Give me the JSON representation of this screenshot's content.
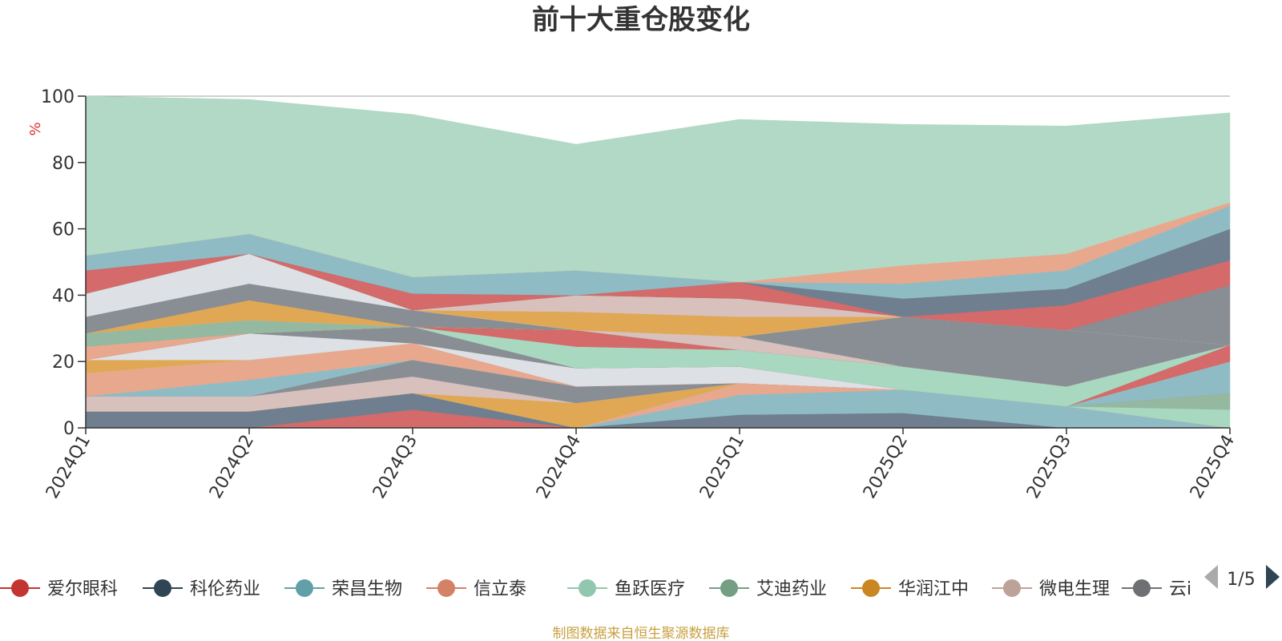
{
  "chart_data": {
    "type": "area",
    "stacked": true,
    "title": "前十大重仓股变化",
    "ylabel": "%",
    "ylim": [
      0,
      100
    ],
    "yticks": [
      0,
      20,
      40,
      60,
      80,
      100
    ],
    "grid": true,
    "categories": [
      "2024Q1",
      "2024Q2",
      "2024Q3",
      "2024Q4",
      "2025Q1",
      "2025Q2",
      "2025Q3",
      "2025Q4"
    ],
    "series": [
      {
        "name": "爱尔眼科",
        "color": "#d46a6a",
        "values": [
          0,
          0,
          5.5,
          0,
          0,
          0,
          0,
          0
        ]
      },
      {
        "name": "科伦药业",
        "color": "#6f7f8f",
        "values": [
          5,
          5,
          5,
          0,
          4,
          4.5,
          0,
          0
        ]
      },
      {
        "name": "荣昌生物",
        "color": "#8fbcc4",
        "values": [
          0,
          0,
          0,
          0,
          6,
          7,
          6.5,
          0
        ]
      },
      {
        "name": "信立泰",
        "color": "#e8a88e",
        "values": [
          0,
          0,
          0,
          0,
          3.5,
          0,
          0,
          0
        ]
      },
      {
        "name": "鱼跃医疗",
        "color": "#a8d8c0",
        "values": [
          0,
          0,
          0,
          0,
          0,
          0,
          0,
          5.5
        ]
      },
      {
        "name": "艾迪药业",
        "color": "#94b8a0",
        "values": [
          0,
          0,
          0,
          0,
          0,
          0,
          0,
          5
        ]
      },
      {
        "name": "华润江中",
        "color": "#e0a855",
        "values": [
          0,
          0,
          0,
          7.5,
          0,
          0,
          0,
          0
        ]
      },
      {
        "name": "微电生理",
        "color": "#d8c0bc",
        "values": [
          4.5,
          4.5,
          5,
          0,
          0,
          0,
          0,
          0
        ]
      },
      {
        "name": "云i",
        "color": "#888e94",
        "values": [
          0,
          0,
          5,
          5,
          0,
          0,
          0,
          0
        ]
      },
      {
        "name": "",
        "color": "#8fbcc4",
        "values": [
          0,
          5,
          0,
          0,
          0,
          0,
          0,
          9.5
        ]
      },
      {
        "name": "",
        "color": "#e8a88e",
        "values": [
          7,
          6,
          5,
          0,
          0,
          0,
          0,
          0
        ]
      },
      {
        "name": "",
        "color": "#d46a6a",
        "values": [
          0,
          0,
          0,
          0,
          0,
          0,
          0,
          5
        ]
      },
      {
        "name": "",
        "color": "#dde0e4",
        "values": [
          0,
          0,
          0,
          5.5,
          5,
          0,
          0,
          0
        ]
      },
      {
        "name": "",
        "color": "#e0a855",
        "values": [
          4,
          0,
          0,
          0,
          0,
          0,
          0,
          0
        ]
      },
      {
        "name": "",
        "color": "#dde0e4",
        "values": [
          0,
          8,
          0,
          0,
          0,
          0,
          0,
          0
        ]
      },
      {
        "name": "",
        "color": "#888e94",
        "values": [
          0,
          0,
          5,
          0,
          0,
          0,
          0,
          0
        ]
      },
      {
        "name": "",
        "color": "#a8d8c0",
        "values": [
          0,
          0,
          0,
          6.5,
          5,
          7,
          6,
          0
        ]
      },
      {
        "name": "",
        "color": "#d8c0bc",
        "values": [
          0,
          0,
          0,
          0,
          0,
          0,
          0,
          0
        ]
      },
      {
        "name": "",
        "color": "#d46a6a",
        "values": [
          0,
          0,
          0,
          5,
          0,
          0,
          0,
          0
        ]
      },
      {
        "name": "",
        "color": "#e8a88e",
        "values": [
          4,
          0,
          0,
          0,
          0,
          0,
          0,
          0
        ]
      },
      {
        "name": "",
        "color": "#94b8a0",
        "values": [
          4,
          4,
          0,
          0,
          0,
          0,
          0,
          0
        ]
      },
      {
        "name": "",
        "color": "#a8d8c0",
        "values": [
          0,
          0,
          0,
          0,
          0,
          0,
          0,
          0
        ]
      },
      {
        "name": "",
        "color": "#e0a855",
        "values": [
          0,
          6,
          0,
          0,
          0,
          0,
          0,
          0
        ]
      },
      {
        "name": "",
        "color": "#888e94",
        "values": [
          5,
          5,
          5,
          0,
          0,
          0,
          0,
          0
        ]
      },
      {
        "name": "",
        "color": "#d8c0bc",
        "values": [
          0,
          0,
          0,
          0,
          4,
          0,
          0,
          0
        ]
      },
      {
        "name": "",
        "color": "#888e94",
        "values": [
          0,
          0,
          0,
          0,
          0,
          15,
          17,
          0
        ]
      },
      {
        "name": "",
        "color": "#dde0e4",
        "values": [
          7,
          9,
          0,
          0,
          0,
          0,
          0,
          0
        ]
      },
      {
        "name": "",
        "color": "#e0a855",
        "values": [
          0,
          0,
          0,
          5.5,
          6,
          0,
          0,
          0
        ]
      },
      {
        "name": "",
        "color": "#d8c0bc",
        "values": [
          0,
          0,
          0,
          5,
          5.5,
          0,
          0,
          0
        ]
      },
      {
        "name": "",
        "color": "#888e94",
        "values": [
          0,
          0,
          0,
          0,
          0,
          0,
          0,
          18
        ]
      },
      {
        "name": "",
        "color": "#d46a6a",
        "values": [
          7,
          0,
          5,
          0,
          5,
          0,
          7.5,
          7.5
        ]
      },
      {
        "name": "",
        "color": "#6f7f8f",
        "values": [
          0,
          0,
          0,
          0,
          0,
          5.5,
          5,
          9.5
        ]
      },
      {
        "name": "",
        "color": "#8fbcc4",
        "values": [
          4.5,
          6,
          5,
          7.5,
          0,
          4.5,
          5.5,
          7
        ]
      },
      {
        "name": "",
        "color": "#e8a88e",
        "values": [
          0,
          0,
          0,
          0,
          0,
          5.5,
          5,
          1
        ]
      },
      {
        "name": "",
        "color": "#b2d9c5",
        "values": [
          48,
          40.5,
          49,
          38,
          49,
          42.5,
          38.5,
          27
        ]
      }
    ],
    "legend": {
      "position": "bottom",
      "items": [
        {
          "name": "爱尔眼科",
          "color": "#c23531"
        },
        {
          "name": "科伦药业",
          "color": "#2f4554"
        },
        {
          "name": "荣昌生物",
          "color": "#61a0a8"
        },
        {
          "name": "信立泰",
          "color": "#d48265"
        },
        {
          "name": "鱼跃医疗",
          "color": "#91c7ae"
        },
        {
          "name": "艾迪药业",
          "color": "#749f83"
        },
        {
          "name": "华润江中",
          "color": "#ca8622"
        },
        {
          "name": "微电生理",
          "color": "#bda29a"
        },
        {
          "name": "云i",
          "color": "#6e7074"
        }
      ],
      "page": "1/5"
    },
    "source": "制图数据来自恒生聚源数据库"
  }
}
